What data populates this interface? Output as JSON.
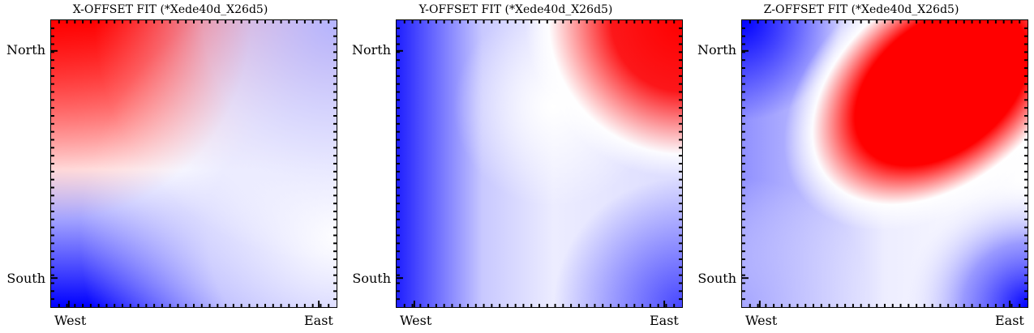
{
  "chart_data": [
    {
      "type": "heatmap",
      "title": "X-OFFSET FIT (*Xede40d_X26d5)",
      "x_tick_labels": [
        "West",
        "East"
      ],
      "y_tick_labels": [
        "North",
        "South"
      ],
      "colormap": "bwr",
      "colors": {
        "low": "#0000ff",
        "mid": "#ffffff",
        "high": "#ff0000"
      },
      "pattern": "red in the north-west corner, blue in the south-west corner, white band running from the west edge to the north-east"
    },
    {
      "type": "heatmap",
      "title": "Y-OFFSET FIT (*Xede40d_X26d5)",
      "x_tick_labels": [
        "West",
        "East"
      ],
      "y_tick_labels": [
        "North",
        "South"
      ],
      "colormap": "bwr",
      "colors": {
        "low": "#0000ff",
        "mid": "#ffffff",
        "high": "#ff0000"
      },
      "pattern": "red in the north-east corner, blue along the west edge and south-east corner, pale blue elsewhere"
    },
    {
      "type": "heatmap",
      "title": "Z-OFFSET FIT (*Xede40d_X26d5)",
      "x_tick_labels": [
        "West",
        "East"
      ],
      "y_tick_labels": [
        "North",
        "South"
      ],
      "colormap": "bwr",
      "colors": {
        "low": "#0000ff",
        "mid": "#ffffff",
        "high": "#ff0000"
      },
      "pattern": "red lobe in the north-east, blue in the north-west and south-east corners"
    }
  ]
}
